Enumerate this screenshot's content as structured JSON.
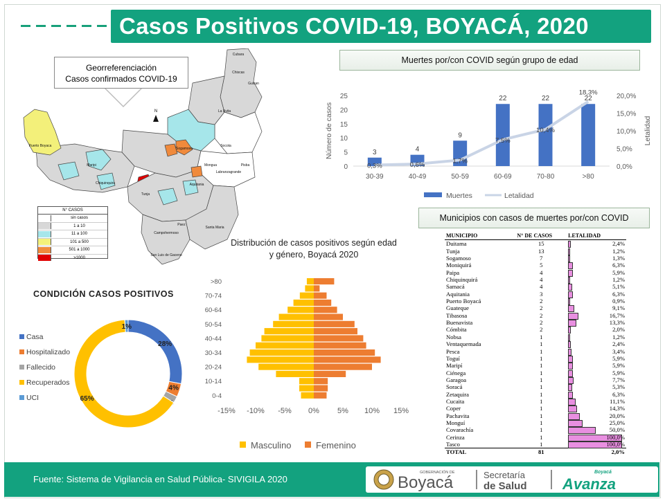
{
  "header": {
    "title": "Casos Positivos COVID-19, BOYACÁ, 2020"
  },
  "map": {
    "callout_line1": "Georreferenciación",
    "callout_line2": "Casos confirmados COVID-19",
    "north": "N",
    "labels": {
      "puerto_boyaca": "Puerto Boyaca",
      "cubara": "Cubara",
      "chiscas": "Chiscas",
      "guican": "Guican",
      "la_uvita": "La Uvita",
      "socota": "Socota",
      "pisba": "Pisba",
      "paez": "Paez",
      "mongua": "Mongua",
      "santa_maria": "Santa Maria",
      "san_luis_gaceno": "San Luis de Gaceno",
      "chiquinquira": "Chiquinquira",
      "tunja": "Tunja",
      "sogamoso": "Sogamoso",
      "aquitania": "Aquitania",
      "labranzagrande": "Labranzagrande",
      "maripi": "Maripi",
      "campohermoso": "Campohermoso"
    },
    "legend": {
      "header": "N° CASOS",
      "items": [
        {
          "label": "sin casos",
          "color": "#ffffff"
        },
        {
          "label": "1 a 10",
          "color": "#d8d8d8"
        },
        {
          "label": "11 a 100",
          "color": "#a6e6ea"
        },
        {
          "label": "101 a 500",
          "color": "#f3f07a"
        },
        {
          "label": "501 a 1000",
          "color": "#f08a3c"
        },
        {
          "label": ">1000",
          "color": "#e00000"
        }
      ]
    }
  },
  "deaths_title": "Muertes por/con COVID según grupo de edad",
  "municipios_title": "Municipios con casos de muertes por/con COVID",
  "condicion_title": "CONDICIÓN CASOS POSITIVOS",
  "pyramid_title_line1": "Distribución de casos positivos según edad",
  "pyramid_title_line2": "y género, Boyacá 2020",
  "chart_data": [
    {
      "type": "bar",
      "title": "Muertes por/con COVID según grupo de edad",
      "categories": [
        "30-39",
        "40-49",
        "50-59",
        "60-69",
        "70-80",
        ">80"
      ],
      "series": [
        {
          "name": "Muertes",
          "type": "bar",
          "axis": "left",
          "values": [
            3,
            4,
            9,
            22,
            22,
            22
          ],
          "value_labels": [
            "3",
            "4",
            "9",
            "22",
            "22",
            "22"
          ]
        },
        {
          "name": "Letalidad",
          "type": "line",
          "axis": "right",
          "values": [
            0.3,
            0.6,
            1.7,
            7.5,
            10.4,
            18.3
          ],
          "value_labels": [
            "0,3%",
            "0,6%",
            "1,7%",
            "7,5%",
            "10,4%",
            "18,3%"
          ]
        }
      ],
      "ylabel": "Número de casos",
      "y2label": "Letalidad",
      "ylim": [
        0,
        25
      ],
      "yticks": [
        "0",
        "5",
        "10",
        "15",
        "20",
        "25"
      ],
      "y2lim": [
        0,
        20
      ],
      "y2ticks": [
        "0,0%",
        "5,0%",
        "10,0%",
        "15,0%",
        "20,0%"
      ],
      "legend_position": "bottom",
      "colors": {
        "bar": "#4472c4",
        "line": "#c9d4e6"
      }
    },
    {
      "type": "pie",
      "variant": "donut",
      "title": "CONDICIÓN CASOS POSITIVOS",
      "labels": [
        "Casa",
        "Hospitalizado",
        "Fallecido",
        "Recuperados",
        "UCI"
      ],
      "values": [
        28,
        4,
        2,
        65,
        1
      ],
      "value_labels": [
        "28%",
        "4%",
        "2%",
        "65%",
        "1%"
      ],
      "colors": [
        "#4472c4",
        "#ed7d31",
        "#a5a5a5",
        "#ffc000",
        "#5b9bd5"
      ],
      "legend_position": "left"
    },
    {
      "type": "bar",
      "variant": "population-pyramid",
      "title": "Distribución de casos positivos según edad y género, Boyacá 2020",
      "categories": [
        "0-4",
        "5-9",
        "10-14",
        "15-19",
        "20-24",
        "25-29",
        "30-34",
        "35-39",
        "40-44",
        "45-49",
        "50-54",
        "55-59",
        "60-64",
        "65-69",
        "70-74",
        "75-79",
        ">80"
      ],
      "category_tick_labels": [
        "0-4",
        "10-14",
        "20-24",
        "30-34",
        "40-44",
        "50-54",
        "60-64",
        "70-74",
        ">80"
      ],
      "series": [
        {
          "name": "Masculino",
          "values": [
            -2.2,
            -2.5,
            -2.5,
            -6.5,
            -9.5,
            -11.5,
            -11,
            -10,
            -9,
            -8.5,
            -7,
            -6,
            -4.5,
            -3.5,
            -2.4,
            -1.5,
            -1.2
          ]
        },
        {
          "name": "Femenino",
          "values": [
            2.2,
            2.4,
            2.4,
            5.5,
            10,
            11.5,
            10.5,
            9,
            8.5,
            7.5,
            7,
            5,
            4,
            3,
            2.2,
            1,
            3.5
          ]
        }
      ],
      "xlabel": "",
      "ylabel": "",
      "xlim": [
        -15,
        15
      ],
      "xticks": [
        "-15%",
        "-10%",
        "-5%",
        "0%",
        "5%",
        "10%",
        "15%"
      ],
      "colors": {
        "Masculino": "#ffc000",
        "Femenino": "#ed7d31"
      },
      "legend_position": "bottom"
    },
    {
      "type": "table",
      "title": "Municipios con casos de muertes por/con COVID",
      "columns": [
        "MUNICIPIO",
        "N° DE CASOS",
        "LETALIDAD"
      ],
      "rows": [
        [
          "Duitama",
          "15",
          "2,4%"
        ],
        [
          "Tunja",
          "13",
          "1,2%"
        ],
        [
          "Sogamoso",
          "7",
          "1,3%"
        ],
        [
          "Moniquirá",
          "5",
          "6,3%"
        ],
        [
          "Paipa",
          "4",
          "5,9%"
        ],
        [
          "Chiquinquirá",
          "4",
          "1,2%"
        ],
        [
          "Samacá",
          "4",
          "5,1%"
        ],
        [
          "Aquitania",
          "3",
          "6,3%"
        ],
        [
          "Puerto Boyacá",
          "2",
          "0,9%"
        ],
        [
          "Guateque",
          "2",
          "9,1%"
        ],
        [
          "Tibasosa",
          "2",
          "16,7%"
        ],
        [
          "Buenavista",
          "2",
          "13,3%"
        ],
        [
          "Cómbita",
          "2",
          "2,0%"
        ],
        [
          "Nobsa",
          "1",
          "1,2%"
        ],
        [
          "Ventaquemada",
          "1",
          "2,4%"
        ],
        [
          "Pesca",
          "1",
          "3,4%"
        ],
        [
          "Toguí",
          "1",
          "5,9%"
        ],
        [
          "Maripí",
          "1",
          "5,9%"
        ],
        [
          "Ciénega",
          "1",
          "5,9%"
        ],
        [
          "Garagoa",
          "1",
          "7,7%"
        ],
        [
          "Soracá",
          "1",
          "5,3%"
        ],
        [
          "Zetaquira",
          "1",
          "6,3%"
        ],
        [
          "Cucaita",
          "1",
          "11,1%"
        ],
        [
          "Coper",
          "1",
          "14,3%"
        ],
        [
          "Pachavita",
          "1",
          "20,0%"
        ],
        [
          "Monguí",
          "1",
          "25,0%"
        ],
        [
          "Covarachía",
          "1",
          "50,0%"
        ],
        [
          "Cerinza",
          "1",
          "100,0%"
        ],
        [
          "Tasco",
          "1",
          "100,0%"
        ]
      ],
      "letalidad_values": [
        2.4,
        1.2,
        1.3,
        6.3,
        5.9,
        1.2,
        5.1,
        6.3,
        0.9,
        9.1,
        16.7,
        13.3,
        2.0,
        1.2,
        2.4,
        3.4,
        5.9,
        5.9,
        5.9,
        7.7,
        5.3,
        6.3,
        11.1,
        14.3,
        20.0,
        25.0,
        50.0,
        100.0,
        100.0
      ],
      "total": [
        "TOTAL",
        "81",
        "2,0%"
      ]
    }
  ],
  "footer": {
    "source": "Fuente: Sistema de Vigilancia en Salud Pública- SIVIGILA 2020",
    "gob_small": "GOBERNACIÓN DE",
    "boyaca": "Boyacá",
    "secretaria_line1": "Secretaría",
    "secretaria_line2": "de Salud",
    "avanza_small": "Boyacá",
    "avanza": "Avanza"
  }
}
